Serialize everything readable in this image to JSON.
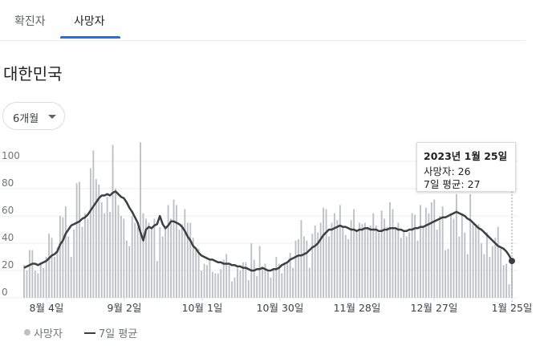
{
  "tabs": [
    {
      "label": "확진자"
    },
    {
      "label": "사망자"
    }
  ],
  "region": "대한민국",
  "range_select": {
    "label": "6개월",
    "icon": "caret-down-icon"
  },
  "tooltip": {
    "date": "2023년 1월 25일",
    "deaths_text": "사망자: 26",
    "avg_text": "7일 평균: 27"
  },
  "legend": {
    "deaths": "사망자",
    "average": "7일 평균"
  },
  "colors": {
    "accent": "#1a73e8",
    "bar": "#bdc1c6",
    "line": "#3c4043"
  },
  "chart_data": {
    "type": "bar",
    "x_tick_labels": [
      "8월 4일",
      "9월 2일",
      "10월 1일",
      "10월 30일",
      "11월 28일",
      "12월 27일",
      "1월 25일"
    ],
    "y_ticks": [
      0,
      20,
      40,
      60,
      80,
      100
    ],
    "ylim": [
      0,
      115
    ],
    "grid": true,
    "series": [
      {
        "name": "사망자",
        "type": "bar",
        "values": [
          24,
          20,
          35,
          35,
          20,
          18,
          26,
          22,
          30,
          47,
          44,
          30,
          37,
          60,
          59,
          67,
          45,
          30,
          50,
          84,
          85,
          52,
          62,
          58,
          95,
          108,
          87,
          83,
          70,
          62,
          74,
          63,
          112,
          80,
          68,
          60,
          58,
          42,
          38,
          60,
          55,
          52,
          114,
          62,
          58,
          55,
          52,
          58,
          27,
          52,
          45,
          52,
          68,
          58,
          72,
          68,
          50,
          54,
          65,
          55,
          55,
          44,
          35,
          36,
          20,
          25,
          24,
          27,
          19,
          18,
          18,
          21,
          28,
          32,
          24,
          12,
          15,
          22,
          20,
          26,
          26,
          13,
          40,
          28,
          16,
          38,
          22,
          25,
          19,
          15,
          20,
          30,
          25,
          18,
          26,
          25,
          33,
          22,
          42,
          43,
          57,
          45,
          42,
          22,
          47,
          53,
          48,
          55,
          66,
          65,
          45,
          55,
          62,
          57,
          68,
          52,
          46,
          43,
          57,
          65,
          50,
          55,
          54,
          55,
          52,
          53,
          62,
          53,
          48,
          64,
          58,
          52,
          70,
          65,
          50,
          55,
          44,
          49,
          45,
          48,
          62,
          61,
          42,
          68,
          52,
          66,
          62,
          70,
          72,
          50,
          60,
          67,
          35,
          36,
          62,
          58,
          76,
          45,
          62,
          48,
          32,
          76,
          55,
          54,
          54,
          40,
          32,
          48,
          30,
          38,
          44,
          52,
          36,
          24,
          25,
          10,
          26
        ]
      },
      {
        "name": "7일 평균",
        "type": "line",
        "values": [
          22,
          23,
          24,
          25,
          25,
          24,
          25,
          26,
          27,
          29,
          31,
          32,
          34,
          39,
          42,
          47,
          50,
          53,
          54,
          55,
          56,
          58,
          59,
          61,
          64,
          67,
          70,
          73,
          75,
          75,
          76,
          75,
          77,
          78,
          76,
          74,
          73,
          70,
          66,
          63,
          59,
          55,
          48,
          42,
          50,
          52,
          51,
          53,
          54,
          60,
          54,
          51,
          53,
          56,
          56,
          55,
          54,
          52,
          49,
          45,
          42,
          38,
          36,
          33,
          31,
          30,
          29,
          28,
          28,
          27,
          26,
          26,
          25,
          25,
          25,
          24,
          24,
          23,
          23,
          22,
          22,
          21,
          20,
          20,
          21,
          21,
          22,
          21,
          20,
          20,
          21,
          21,
          22,
          24,
          25,
          26,
          28,
          29,
          30,
          31,
          31,
          32,
          33,
          35,
          37,
          38,
          40,
          43,
          46,
          48,
          50,
          50,
          51,
          52,
          53,
          52,
          52,
          51,
          50,
          50,
          49,
          50,
          50,
          51,
          51,
          50,
          50,
          50,
          49,
          49,
          50,
          50,
          51,
          51,
          51,
          50,
          50,
          49,
          49,
          50,
          50,
          51,
          51,
          52,
          52,
          53,
          54,
          55,
          56,
          57,
          58,
          59,
          59,
          60,
          61,
          62,
          63,
          62,
          61,
          60,
          58,
          57,
          55,
          53,
          51,
          50,
          48,
          46,
          44,
          42,
          40,
          38,
          37,
          36,
          34,
          31,
          27
        ]
      }
    ]
  }
}
